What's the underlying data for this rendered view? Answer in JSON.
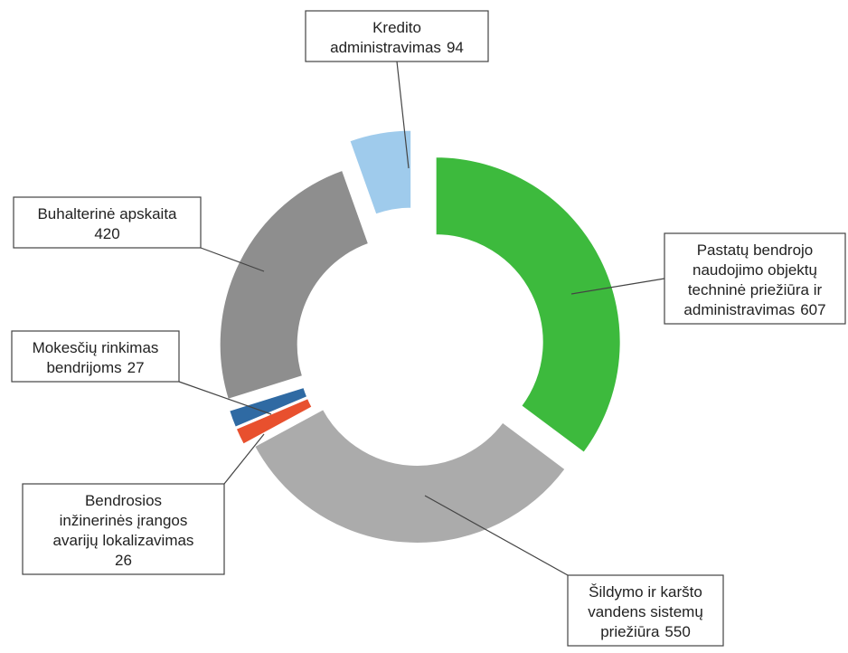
{
  "chart_data": {
    "type": "donut",
    "categories": [
      [
        "Pastatų bendrojo",
        "naudojimo objektų",
        "techninė priežiūra ir",
        "administravimas"
      ],
      [
        "Šildymo ir karšto",
        "vandens sistemų",
        "priežiūra"
      ],
      [
        "Bendrosios",
        "inžinerinės įrangos",
        "avarijų lokalizavimas"
      ],
      [
        "Mokesčių rinkimas",
        "bendrijoms"
      ],
      [
        "Buhalterinė apskaita"
      ],
      [
        "Kredito",
        "administravimas"
      ]
    ],
    "values": [
      607,
      550,
      26,
      27,
      420,
      94
    ],
    "colors": [
      "#3dba3d",
      "#ababab",
      "#e8502e",
      "#2f6aa3",
      "#8e8e8e",
      "#9fcbec"
    ]
  }
}
